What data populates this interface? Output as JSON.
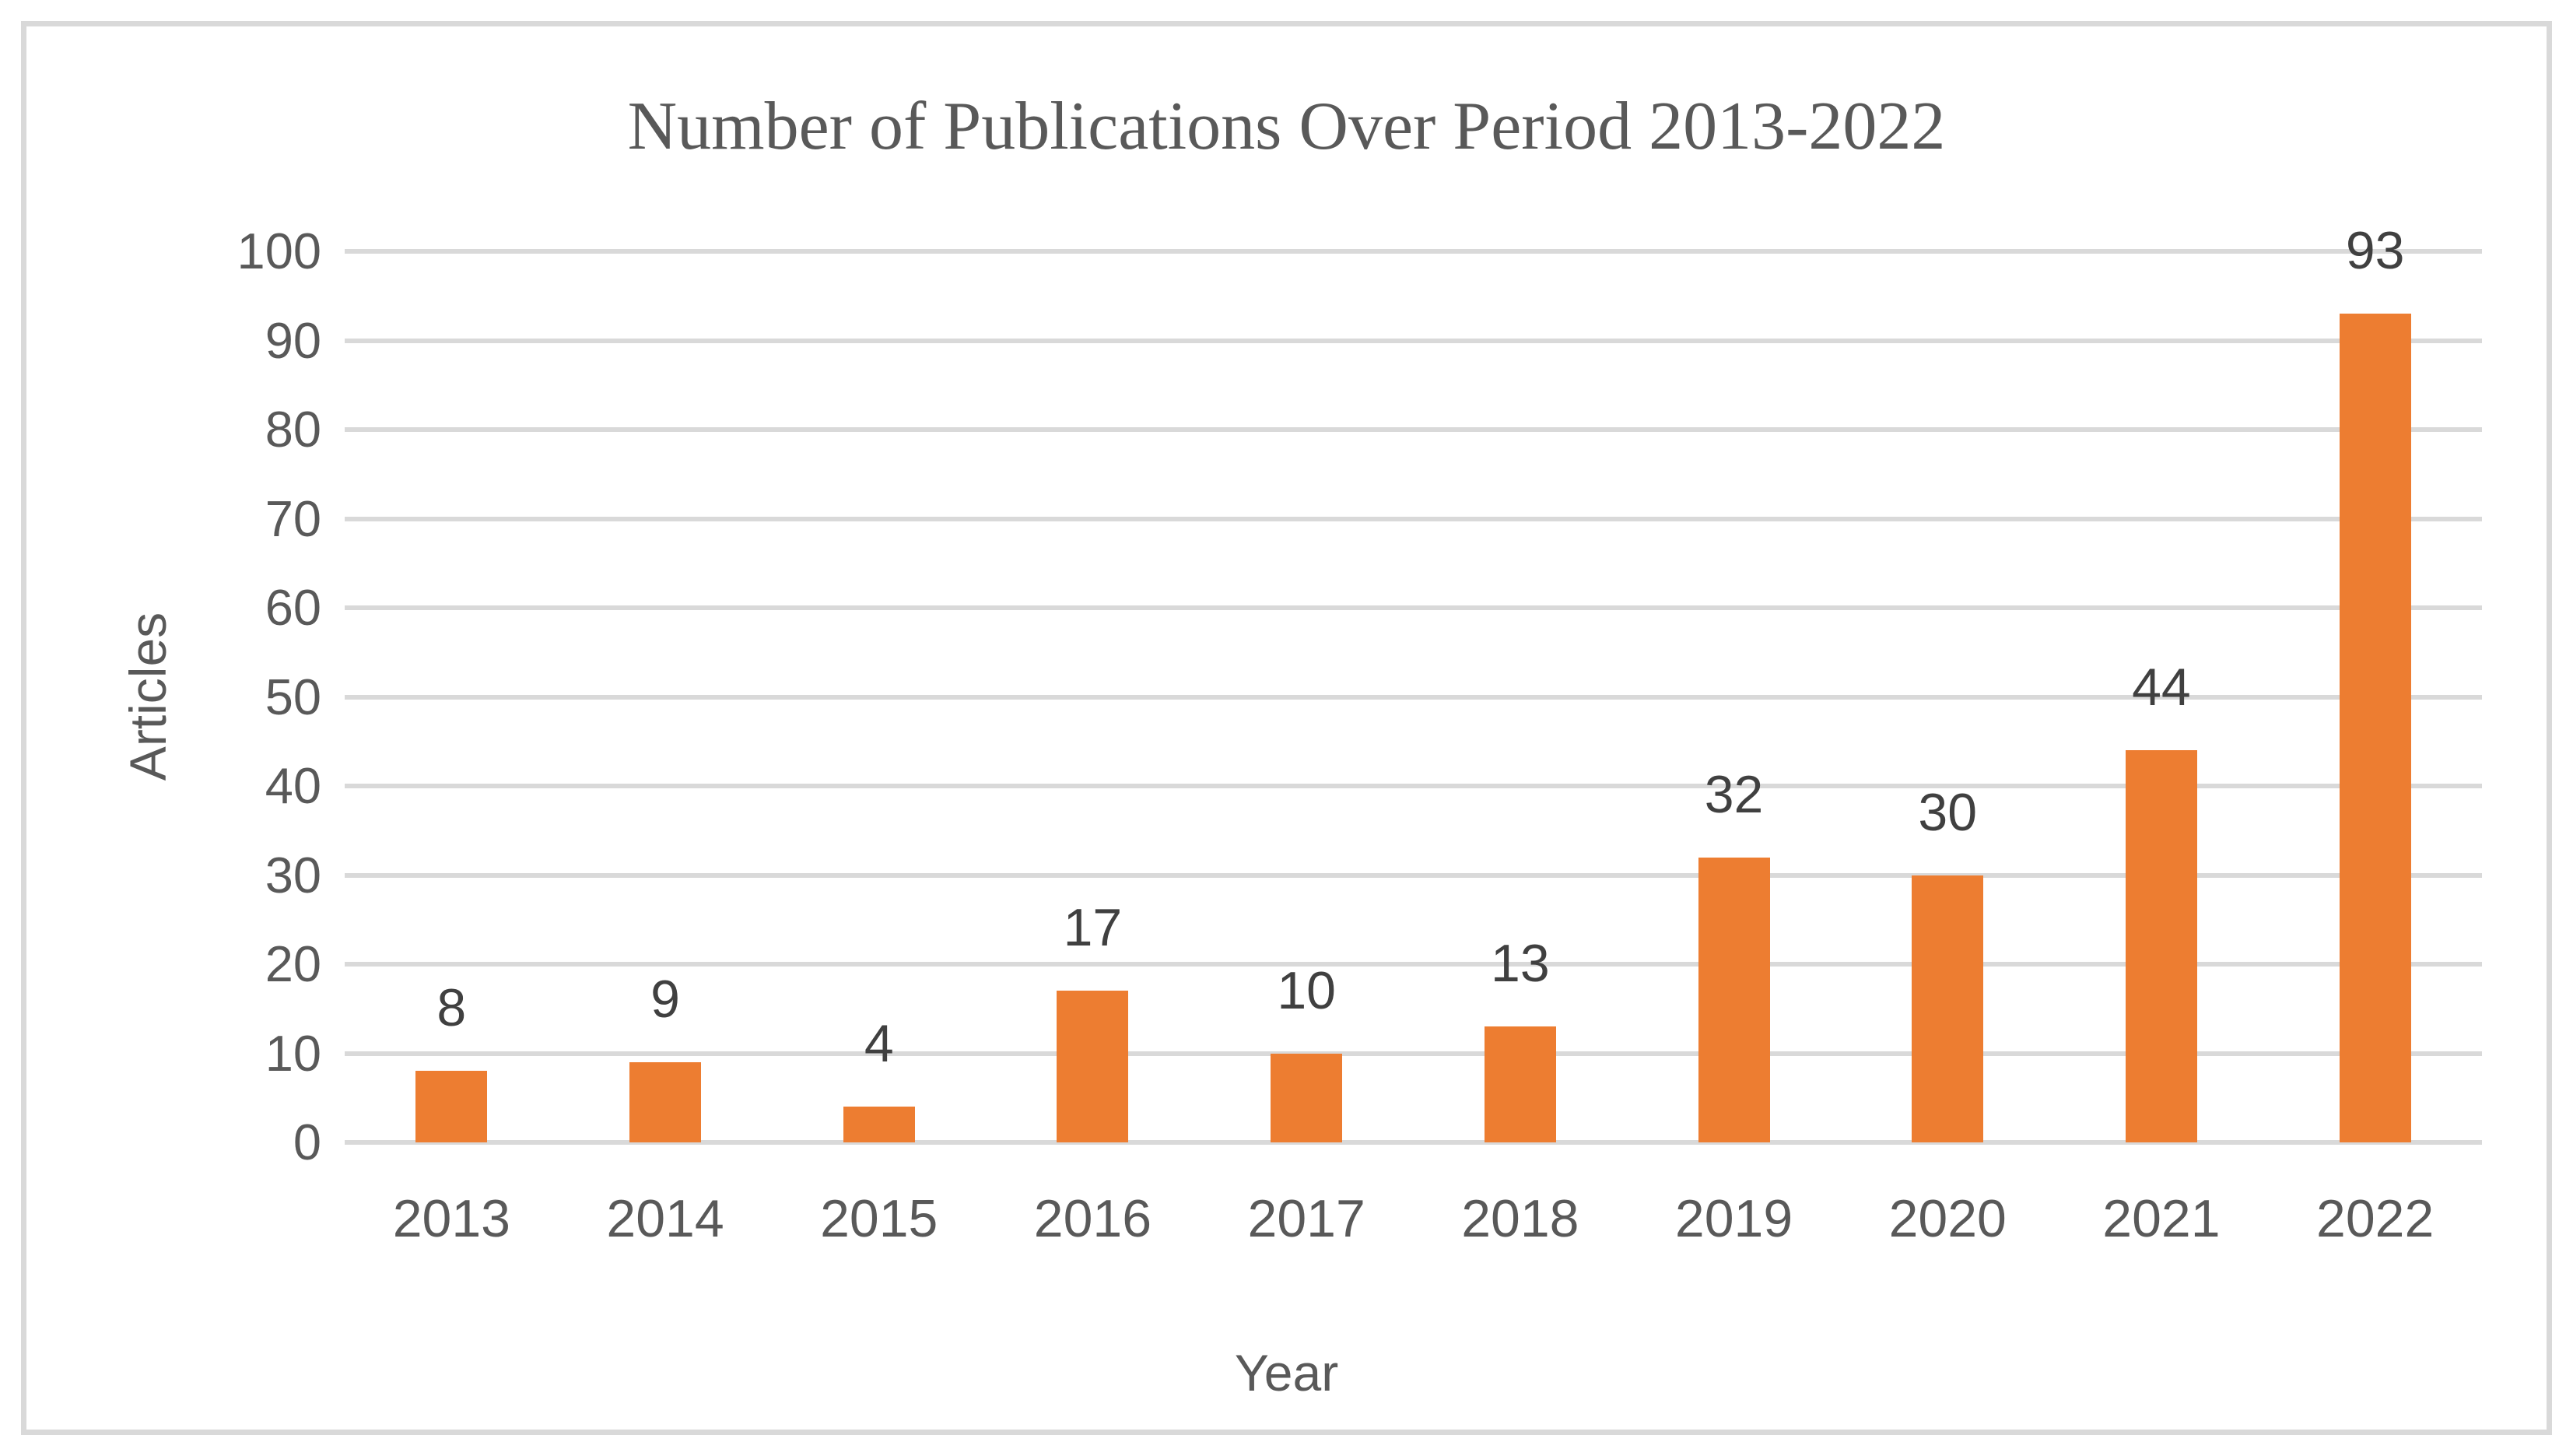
{
  "chart_data": {
    "type": "bar",
    "title": "Number of Publications Over Period 2013-2022",
    "xlabel": "Year",
    "ylabel": "Articles",
    "categories": [
      "2013",
      "2014",
      "2015",
      "2016",
      "2017",
      "2018",
      "2019",
      "2020",
      "2021",
      "2022"
    ],
    "values": [
      8,
      9,
      4,
      17,
      10,
      13,
      32,
      30,
      44,
      93
    ],
    "data_labels": [
      "8",
      "9",
      "4",
      "17",
      "10",
      "13",
      "32",
      "30",
      "44",
      "93"
    ],
    "ylim": [
      0,
      100
    ],
    "ytick_step": 10,
    "yticks": [
      0,
      10,
      20,
      30,
      40,
      50,
      60,
      70,
      80,
      90,
      100
    ],
    "grid": true,
    "legend_position": "none",
    "colors": {
      "bar": "#ED7D31",
      "gridline": "#D9D9D9",
      "frame_border": "#D9D9D9",
      "axis_text": "#595959",
      "title_text": "#595959",
      "data_label_text": "#404040"
    }
  }
}
